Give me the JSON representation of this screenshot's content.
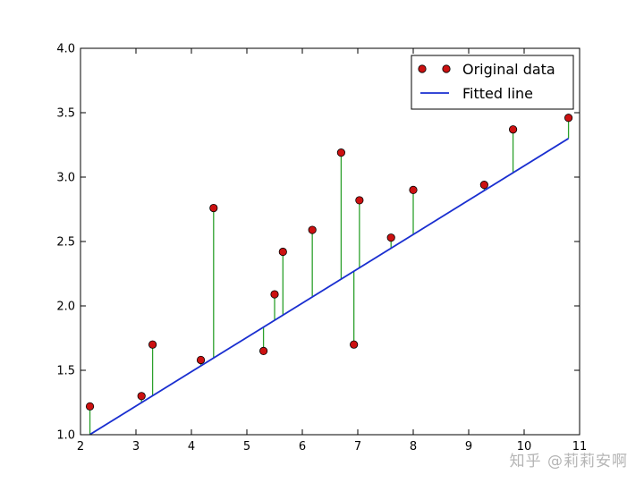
{
  "chart_data": {
    "type": "scatter",
    "title": "",
    "xlabel": "",
    "ylabel": "",
    "xlim": [
      2,
      11
    ],
    "ylim": [
      1.0,
      4.0
    ],
    "xticks": [
      "2",
      "3",
      "4",
      "5",
      "6",
      "7",
      "8",
      "9",
      "10",
      "11"
    ],
    "yticks": [
      "1.0",
      "1.5",
      "2.0",
      "2.5",
      "3.0",
      "3.5",
      "4.0"
    ],
    "grid": false,
    "legend_position": "top-right",
    "series": [
      {
        "name": "Original data",
        "kind": "points",
        "color": "#cc1111",
        "x": [
          2.17,
          3.1,
          3.3,
          4.17,
          4.4,
          5.3,
          5.5,
          5.65,
          6.18,
          6.7,
          6.93,
          7.03,
          7.6,
          8.0,
          9.28,
          9.8,
          10.8
        ],
        "y": [
          1.22,
          1.3,
          1.7,
          1.58,
          2.76,
          1.65,
          2.09,
          2.42,
          2.59,
          3.19,
          1.7,
          2.82,
          2.53,
          2.9,
          2.94,
          3.37,
          3.46
        ]
      },
      {
        "name": "Fitted line",
        "kind": "line",
        "color": "#1a2fd0",
        "slope": 0.2664,
        "intercept": 0.4232
      }
    ],
    "residuals_color": "#2ca02c"
  },
  "watermark": "知乎 @莉莉安啊"
}
